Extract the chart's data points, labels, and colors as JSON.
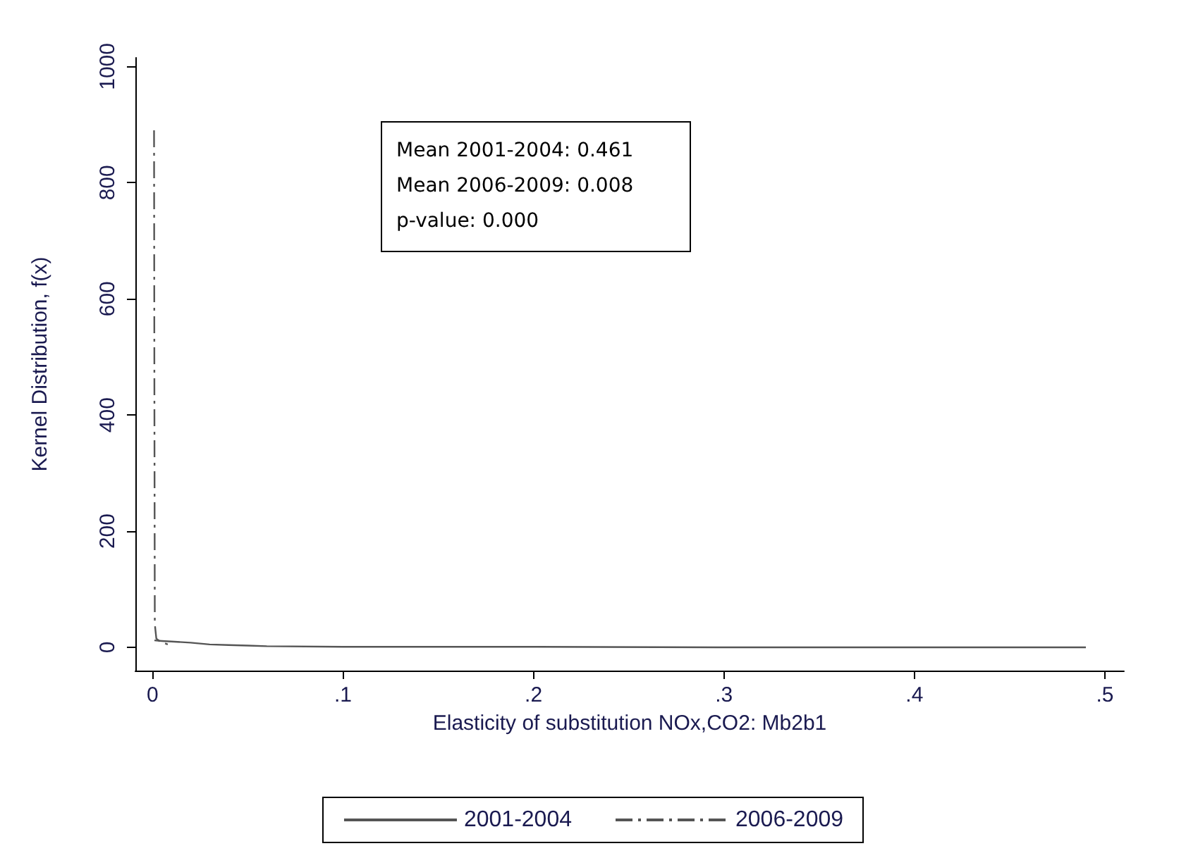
{
  "chart_data": {
    "type": "line",
    "xlabel": "Elasticity of substitution NOx,CO2: Mb2b1",
    "ylabel": "Kernel Distribution, f(x)",
    "annotations": [
      "Mean 2001-2004: 0.461",
      "Mean 2006-2009: 0.008",
      "p-value: 0.000"
    ],
    "xlim": [
      -0.009,
      0.51
    ],
    "xticks": [
      0,
      {
        "value": 0.1,
        "label": ".1"
      },
      {
        "value": 0.2,
        "label": ".2"
      },
      {
        "value": 0.3,
        "label": ".3"
      },
      {
        "value": 0.4,
        "label": ".4"
      },
      {
        "value": 0.5,
        "label": ".5"
      }
    ],
    "ylim": [
      -40,
      1015
    ],
    "yticks": [
      0,
      200,
      400,
      600,
      800,
      1000
    ],
    "grid": false,
    "legend": "bottom",
    "marker": "none",
    "series": [
      {
        "name": "2001-2004",
        "color": "#555555",
        "line_style": "solid",
        "x": [
          0.001,
          0.005,
          0.01,
          0.02,
          0.03,
          0.04,
          0.05,
          0.06,
          0.1,
          0.2,
          0.3,
          0.4,
          0.49
        ],
        "values": [
          12,
          11,
          10,
          8,
          5,
          4,
          3,
          2,
          1,
          1,
          0,
          0,
          0
        ]
      },
      {
        "name": "2006-2009",
        "color": "#555555",
        "line_style": "dashed",
        "x": [
          0.0008,
          0.001,
          0.0012,
          0.002,
          0.004,
          0.008
        ],
        "values": [
          890,
          400,
          40,
          15,
          10,
          5
        ]
      }
    ]
  }
}
